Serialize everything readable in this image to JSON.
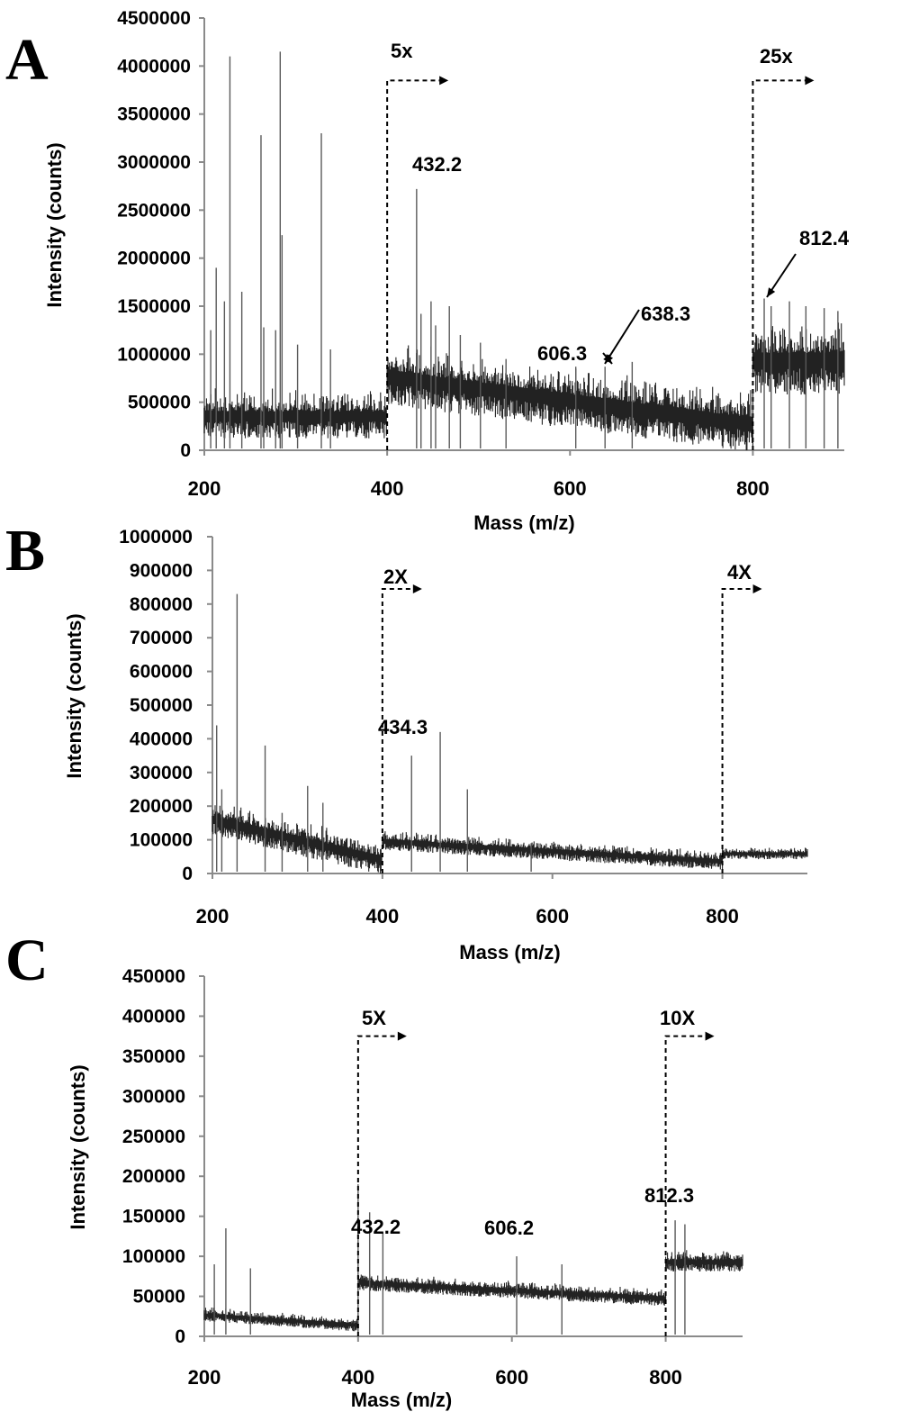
{
  "chart_data": [
    {
      "panel": "A",
      "type": "line",
      "title": "",
      "xlabel": "Mass (m/z)",
      "ylabel": "Intensity (counts)",
      "xlim": [
        200,
        900
      ],
      "ylim": [
        0,
        4500000
      ],
      "x_ticks": [
        "200",
        "400",
        "600",
        "800"
      ],
      "y_ticks": [
        "0",
        "500000",
        "1000000",
        "1500000",
        "2000000",
        "2500000",
        "3000000",
        "3500000",
        "4000000",
        "4500000"
      ],
      "segments": [
        {
          "from": 200,
          "to": 400,
          "baseline": 300000,
          "noise": 350000
        },
        {
          "from": 400,
          "to": 800,
          "baseline": [
            700000,
            200000
          ],
          "noise": 450000
        },
        {
          "from": 800,
          "to": 900,
          "baseline": 850000,
          "noise": 550000
        }
      ],
      "series": [
        {
          "values": [
            [
              207,
              1250000
            ],
            [
              213,
              1900000
            ],
            [
              222,
              1550000
            ],
            [
              228,
              4100000
            ],
            [
              241,
              1650000
            ],
            [
              262,
              3280000
            ],
            [
              265,
              1280000
            ],
            [
              278,
              1250000
            ],
            [
              283,
              4150000
            ],
            [
              285,
              2240000
            ],
            [
              302,
              1100000
            ],
            [
              328,
              3300000
            ],
            [
              338,
              1050000
            ],
            [
              432.2,
              2720000
            ],
            [
              437,
              1420000
            ],
            [
              448,
              1550000
            ],
            [
              453,
              1300000
            ],
            [
              468,
              1500000
            ],
            [
              480,
              1200000
            ],
            [
              502,
              1120000
            ],
            [
              530,
              950000
            ],
            [
              606.3,
              870000
            ],
            [
              638.3,
              870000
            ],
            [
              668,
              920000
            ],
            [
              812.4,
              1580000
            ],
            [
              820,
              1500000
            ],
            [
              840,
              1550000
            ],
            [
              858,
              1500000
            ],
            [
              878,
              1480000
            ],
            [
              893,
              1450000
            ]
          ]
        }
      ],
      "scale_markers": [
        {
          "label": "5x",
          "x": 400,
          "y": 3850000
        },
        {
          "label": "25x",
          "x": 800,
          "y": 3850000
        }
      ],
      "annotations": [
        {
          "text": "432.2",
          "x": 432.2
        },
        {
          "text": "606.3",
          "x": 606.3
        },
        {
          "text": "638.3",
          "x": 638.3
        },
        {
          "text": "812.4",
          "x": 812.4
        }
      ]
    },
    {
      "panel": "B",
      "type": "line",
      "title": "",
      "xlabel": "Mass (m/z)",
      "ylabel": "Intensity (counts)",
      "xlim": [
        200,
        900
      ],
      "ylim": [
        0,
        1000000
      ],
      "x_ticks": [
        "200",
        "400",
        "600",
        "800"
      ],
      "y_ticks": [
        "0",
        "100000",
        "200000",
        "300000",
        "400000",
        "500000",
        "600000",
        "700000",
        "800000",
        "900000",
        "1000000"
      ],
      "segments": [
        {
          "from": 200,
          "to": 400,
          "baseline": [
            150000,
            30000
          ],
          "noise": 70000
        },
        {
          "from": 400,
          "to": 800,
          "baseline": [
            90000,
            30000
          ],
          "noise": 40000
        },
        {
          "from": 800,
          "to": 900,
          "baseline": 55000,
          "noise": 25000
        }
      ],
      "series": [
        {
          "values": [
            [
              205,
              440000
            ],
            [
              211,
              250000
            ],
            [
              229,
              830000
            ],
            [
              262,
              380000
            ],
            [
              282,
              180000
            ],
            [
              312,
              260000
            ],
            [
              330,
              210000
            ],
            [
              434.3,
              350000
            ],
            [
              468,
              420000
            ],
            [
              500,
              250000
            ],
            [
              575,
              90000
            ]
          ]
        }
      ],
      "scale_markers": [
        {
          "label": "2X",
          "x": 400,
          "y": 845000
        },
        {
          "label": "4X",
          "x": 800,
          "y": 845000
        }
      ],
      "annotations": [
        {
          "text": "434.3",
          "x": 434.3
        }
      ]
    },
    {
      "panel": "C",
      "type": "line",
      "title": "",
      "xlabel": "Mass (m/z)",
      "ylabel": "Intensity (counts)",
      "xlim": [
        200,
        900
      ],
      "ylim": [
        0,
        450000
      ],
      "x_ticks": [
        "200",
        "400",
        "600",
        "800"
      ],
      "y_ticks": [
        "0",
        "50000",
        "100000",
        "150000",
        "200000",
        "250000",
        "300000",
        "350000",
        "400000",
        "450000"
      ],
      "segments": [
        {
          "from": 200,
          "to": 400,
          "baseline": [
            25000,
            12000
          ],
          "noise": 12000
        },
        {
          "from": 400,
          "to": 800,
          "baseline": [
            65000,
            45000
          ],
          "noise": 15000
        },
        {
          "from": 800,
          "to": 900,
          "baseline": 90000,
          "noise": 18000
        }
      ],
      "series": [
        {
          "values": [
            [
              213,
              90000
            ],
            [
              228,
              135000
            ],
            [
              260,
              85000
            ],
            [
              400,
              190000
            ],
            [
              415,
              155000
            ],
            [
              432.2,
              130000
            ],
            [
              606.2,
              100000
            ],
            [
              665,
              90000
            ],
            [
              812.3,
              145000
            ],
            [
              825,
              140000
            ]
          ]
        }
      ],
      "scale_markers": [
        {
          "label": "5X",
          "x": 400,
          "y": 375000
        },
        {
          "label": "10X",
          "x": 800,
          "y": 375000
        }
      ],
      "annotations": [
        {
          "text": "432.2",
          "x": 432.2
        },
        {
          "text": "606.2",
          "x": 606.2
        },
        {
          "text": "812.3",
          "x": 812.3
        }
      ]
    }
  ]
}
